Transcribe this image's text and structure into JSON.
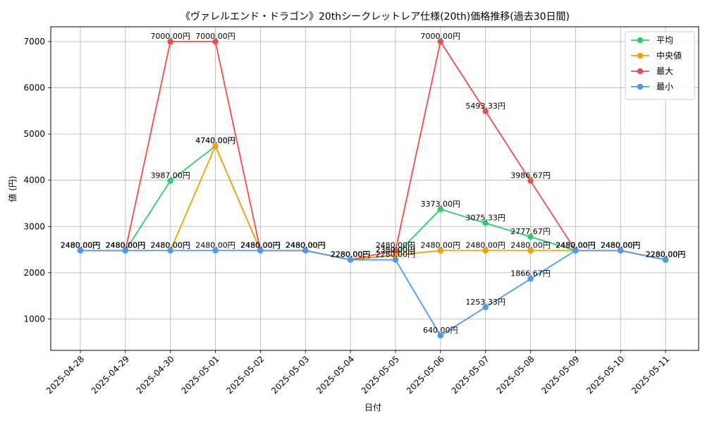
{
  "chart_data": {
    "type": "line",
    "title": "《ヴァレルエンド・ドラゴン》20thシークレットレア仕様(20th)価格推移(過去30日間)",
    "xlabel": "日付",
    "ylabel": "値 (円)",
    "ylim": [
      320,
      7320
    ],
    "yticks": [
      1000,
      2000,
      3000,
      4000,
      5000,
      6000,
      7000
    ],
    "grid": true,
    "legend_position": "top-right",
    "label_suffix": "円",
    "categories": [
      "2025-04-28",
      "2025-04-29",
      "2025-04-30",
      "2025-05-01",
      "2025-05-02",
      "2025-05-03",
      "2025-05-04",
      "2025-05-05",
      "2025-05-06",
      "2025-05-07",
      "2025-05-08",
      "2025-05-09",
      "2025-05-10",
      "2025-05-11"
    ],
    "series": [
      {
        "name": "平均",
        "color": "#2ecc71",
        "values": [
          2480,
          2480,
          3987,
          4740,
          2480,
          2480,
          2280,
          2380,
          3373,
          3075.33,
          2777.67,
          2480,
          2480,
          2280
        ]
      },
      {
        "name": "中央値",
        "color": "#f5a000",
        "values": [
          2480,
          2480,
          2480,
          4740,
          2480,
          2480,
          2280,
          2380,
          2480,
          2480,
          2480,
          2480,
          2480,
          2280
        ]
      },
      {
        "name": "最大",
        "color": "#ef4b4b",
        "values": [
          2480,
          2480,
          7000,
          7000,
          2480,
          2480,
          2280,
          2480,
          7000,
          5493.33,
          3986.67,
          2480,
          2480,
          2280
        ]
      },
      {
        "name": "最小",
        "color": "#4a9af5",
        "values": [
          2480,
          2480,
          2480,
          2480,
          2480,
          2480,
          2280,
          2280,
          640,
          1253.33,
          1866.67,
          2480,
          2480,
          2280
        ]
      }
    ]
  }
}
